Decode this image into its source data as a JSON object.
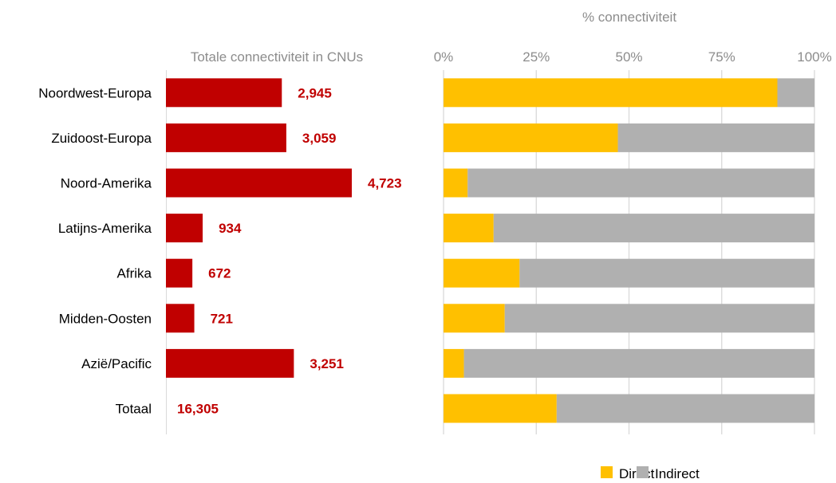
{
  "chart_data": [
    {
      "type": "bar",
      "orientation": "horizontal",
      "title": "Totale connectiviteit in CNUs",
      "categories": [
        "Noordwest-Europa",
        "Zuidoost-Europa",
        "Noord-Amerika",
        "Latijns-Amerika",
        "Afrika",
        "Midden-Oosten",
        "Azië/Pacific",
        "Totaal"
      ],
      "values": [
        2945,
        3059,
        4723,
        934,
        672,
        721,
        3251,
        16305
      ],
      "value_labels": [
        "2,945",
        "3,059",
        "4,723",
        "934",
        "672",
        "721",
        "3,251",
        "16,305"
      ],
      "bar_shown": [
        true,
        true,
        true,
        true,
        true,
        true,
        true,
        false
      ],
      "xlim": [
        0,
        12000
      ],
      "grid": false,
      "bar_color": "#c00000",
      "label_color": "#c00000"
    },
    {
      "type": "bar",
      "orientation": "horizontal",
      "stacked": "percent",
      "title": "% connectiviteit",
      "categories": [
        "Noordwest-Europa",
        "Zuidoost-Europa",
        "Noord-Amerika",
        "Latijns-Amerika",
        "Afrika",
        "Midden-Oosten",
        "Azië/Pacific",
        "Totaal"
      ],
      "series": [
        {
          "name": "Direct",
          "values": [
            90,
            47,
            6.5,
            13.5,
            20.5,
            16.5,
            5.5,
            30.5
          ],
          "color": "#ffc000"
        },
        {
          "name": "Indirect",
          "values": [
            10,
            53,
            93.5,
            86.5,
            79.5,
            83.5,
            94.5,
            69.5
          ],
          "color": "#b0b0b0"
        }
      ],
      "xticks": [
        0,
        25,
        50,
        75,
        100
      ],
      "xtick_labels": [
        "0%",
        "25%",
        "50%",
        "75%",
        "100%"
      ],
      "xlim": [
        0,
        100
      ],
      "grid": true,
      "legend": "bottom-right"
    }
  ]
}
